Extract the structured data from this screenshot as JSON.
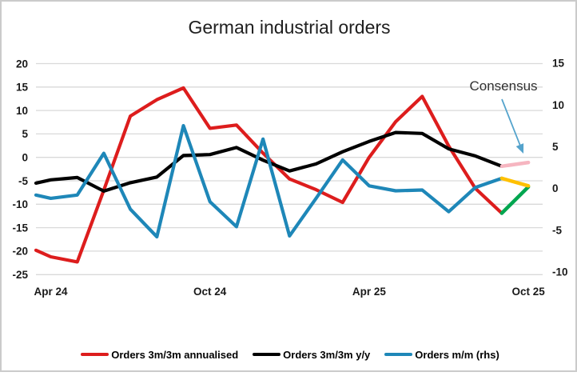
{
  "title": "German industrial orders",
  "annotation": {
    "label": "Consensus",
    "arrow_color": "#54a3cc"
  },
  "axes": {
    "left_ticks": [
      "20",
      "15",
      "10",
      "5",
      "0",
      "-5",
      "-10",
      "-15",
      "-20",
      "-25"
    ],
    "right_ticks": [
      "15",
      "10",
      "5",
      "0",
      "-5",
      "-10"
    ],
    "x_labels": [
      {
        "label": "Apr 24",
        "index": 1
      },
      {
        "label": "Oct 24",
        "index": 7
      },
      {
        "label": "Apr 25",
        "index": 13
      },
      {
        "label": "Oct 25",
        "index": 19
      }
    ]
  },
  "legend": [
    {
      "label": "Orders 3m/3m annualised",
      "color": "#dd1d1d"
    },
    {
      "label": "Orders 3m/3m y/y",
      "color": "#000000"
    },
    {
      "label": "Orders m/m (rhs)",
      "color": "#1e87b8"
    }
  ],
  "colors": {
    "gridline": "#d9d9d9",
    "frame_border": "#cbcbcb",
    "axis_text": "#1a1a1a",
    "title_text": "#202020",
    "consensus_red_series": "#00a650",
    "consensus_black_series": "#f6b5c0",
    "consensus_blue_series": "#ffc000"
  },
  "chart_data": {
    "type": "line",
    "title": "German industrial orders",
    "categories": [
      "Mar 24",
      "Apr 24",
      "May 24",
      "Jun 24",
      "Jul 24",
      "Aug 24",
      "Sep 24",
      "Oct 24",
      "Nov 24",
      "Dec 24",
      "Jan 25",
      "Feb 25",
      "Mar 25",
      "Apr 25",
      "May 25",
      "Jun 25",
      "Jul 25",
      "Aug 25",
      "Sep 25",
      "Oct 25"
    ],
    "series": [
      {
        "name": "Orders 3m/3m annualised",
        "axis": "left",
        "color": "#dd1d1d",
        "values": [
          -19.8,
          -21.2,
          -22.3,
          -7.0,
          8.8,
          12.3,
          14.8,
          6.2,
          6.9,
          0.9,
          -4.6,
          -6.9,
          -9.6,
          0.0,
          7.6,
          13.0,
          2.4,
          -6.6,
          -11.9,
          null
        ]
      },
      {
        "name": "Orders 3m/3m y/y",
        "axis": "left",
        "color": "#000000",
        "values": [
          -5.5,
          -4.8,
          -4.3,
          -7.2,
          -5.4,
          -4.2,
          0.4,
          0.6,
          2.1,
          -0.6,
          -2.9,
          -1.4,
          1.2,
          3.4,
          5.3,
          5.1,
          1.8,
          0.3,
          -1.9,
          null
        ]
      },
      {
        "name": "Orders m/m (rhs)",
        "axis": "right",
        "color": "#1e87b8",
        "values": [
          -0.8,
          -1.2,
          -0.8,
          4.2,
          -2.5,
          -5.8,
          7.5,
          -1.6,
          -4.6,
          5.9,
          -5.7,
          -1.2,
          3.4,
          0.3,
          -0.3,
          -0.2,
          -2.8,
          0.1,
          1.2,
          null
        ]
      }
    ],
    "consensus_points": [
      {
        "series": "Orders 3m/3m annualised",
        "category": "Oct 25",
        "value": -6.3,
        "color": "#00a650"
      },
      {
        "series": "Orders 3m/3m y/y",
        "category": "Oct 25",
        "value": -1.1,
        "color": "#f6b5c0"
      },
      {
        "series": "Orders m/m (rhs)",
        "category": "Oct 25",
        "value": 0.3,
        "color": "#ffc000"
      }
    ],
    "left_axis": {
      "min": -25,
      "max": 20,
      "step": 5
    },
    "right_axis": {
      "min": -10,
      "max": 15,
      "step": 5
    },
    "gridlines": "horizontal",
    "legend_position": "bottom"
  }
}
